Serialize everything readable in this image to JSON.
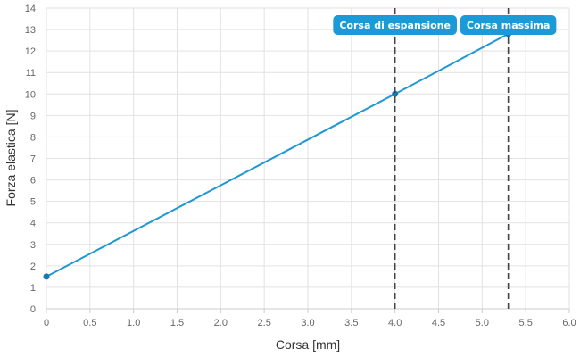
{
  "chart_data": {
    "type": "line",
    "title": "",
    "xlabel": "Corsa [mm]",
    "ylabel": "Forza elastica [N]",
    "xlim": [
      0,
      6
    ],
    "ylim": [
      0,
      14
    ],
    "x_ticks": [
      "0",
      "0.5",
      "1.0",
      "1.5",
      "2.0",
      "2.5",
      "3.0",
      "3.5",
      "4.0",
      "4.5",
      "5.0",
      "5.5",
      "6.0"
    ],
    "y_ticks": [
      "0",
      "1",
      "2",
      "3",
      "4",
      "5",
      "6",
      "7",
      "8",
      "9",
      "10",
      "11",
      "12",
      "13",
      "14"
    ],
    "grid": true,
    "series": [
      {
        "color": "#1f97d4",
        "points": [
          {
            "x": 0,
            "y": 1.5
          },
          {
            "x": 4.0,
            "y": 10
          },
          {
            "x": 5.3,
            "y": 12.8
          }
        ]
      }
    ],
    "annotations": [
      {
        "x": 4.0,
        "label": "Corsa di espansione",
        "color": "#1a9ad6"
      },
      {
        "x": 5.3,
        "label": "Corsa massima",
        "color": "#1a9ad6"
      }
    ]
  }
}
